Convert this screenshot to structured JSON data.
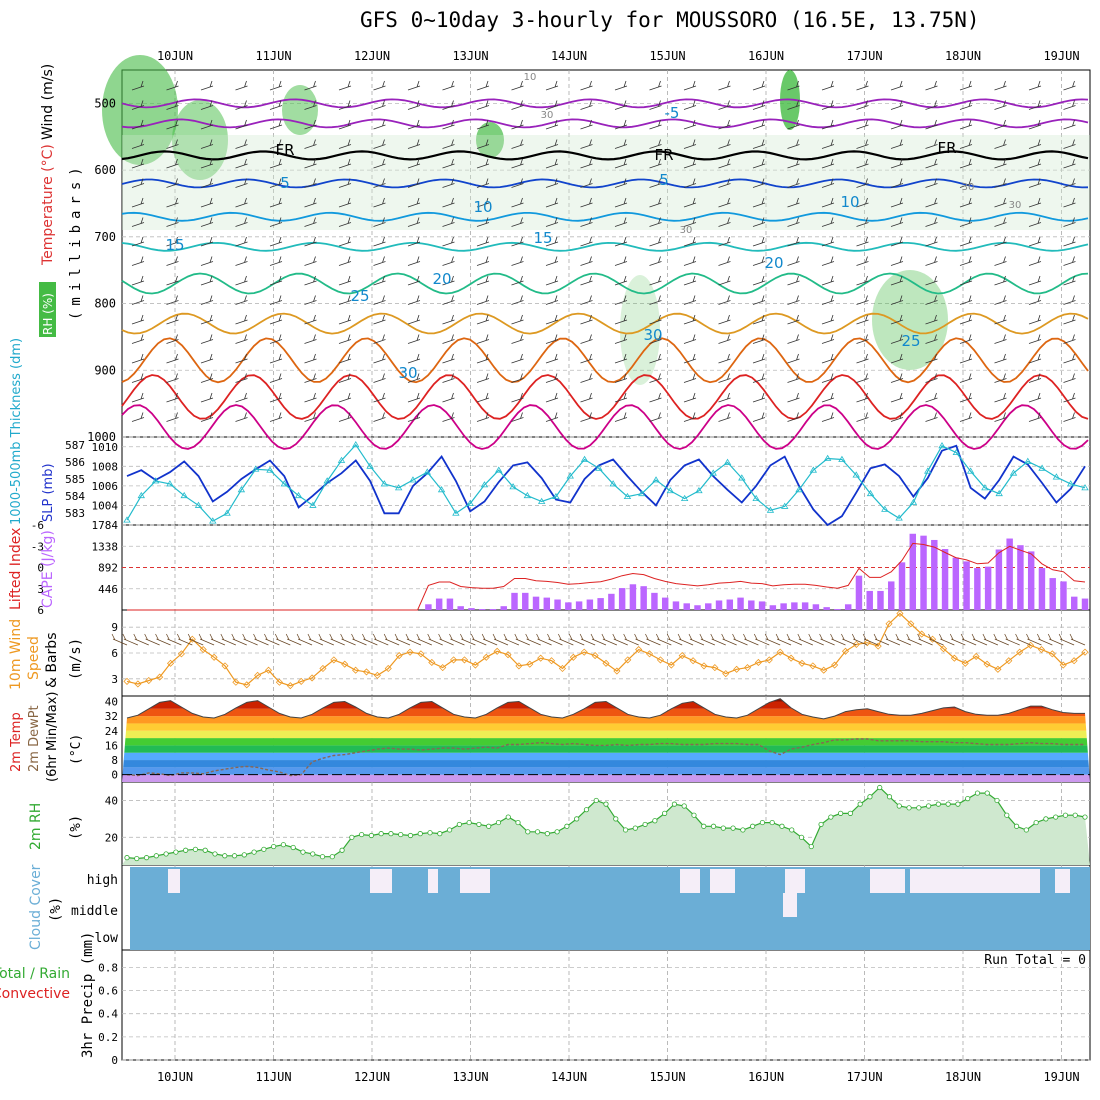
{
  "title": "GFS 0~10day 3-hourly for MOUSSORO (16.5E, 13.75N)",
  "dates": [
    "10JUN",
    "11JUN",
    "12JUN",
    "13JUN",
    "14JUN",
    "15JUN",
    "16JUN",
    "17JUN",
    "18JUN",
    "19JUN"
  ],
  "colors": {
    "rh_green": "#44bb44",
    "cape_purple": "#bb66ff",
    "li_red": "#dd2222",
    "slp_blue": "#1133cc",
    "thick_cyan": "#22bbcc",
    "wind_orange": "#ee9922",
    "rh2m_green": "#33aa33",
    "cloud_blue": "#6baed6",
    "grid": "#aaaaaa"
  },
  "chart_data": [
    {
      "panel": "upper_air",
      "type": "contour",
      "ylabel_parts": [
        "RH (%)",
        "Temperature (°C)",
        "Wind (m/s)"
      ],
      "yaxis_label": "(millibars)",
      "yticks": [
        500,
        600,
        700,
        800,
        900,
        1000
      ],
      "ylim": [
        450,
        1000
      ],
      "contour_labels": [
        {
          "text": "10",
          "kind": "rh"
        },
        {
          "text": "30",
          "kind": "rh"
        },
        {
          "text": "30",
          "kind": "rh"
        },
        {
          "text": "30",
          "kind": "rh"
        },
        {
          "text": "30",
          "kind": "rh"
        },
        {
          "text": "-5",
          "kind": "temp"
        },
        {
          "text": "FR",
          "kind": "freeze"
        },
        {
          "text": "FR",
          "kind": "freeze"
        },
        {
          "text": "FR",
          "kind": "freeze"
        },
        {
          "text": "5",
          "kind": "temp"
        },
        {
          "text": "5",
          "kind": "temp"
        },
        {
          "text": "10",
          "kind": "temp"
        },
        {
          "text": "10",
          "kind": "temp"
        },
        {
          "text": "15",
          "kind": "temp"
        },
        {
          "text": "15",
          "kind": "temp"
        },
        {
          "text": "20",
          "kind": "temp"
        },
        {
          "text": "20",
          "kind": "temp"
        },
        {
          "text": "25",
          "kind": "temp"
        },
        {
          "text": "25",
          "kind": "temp"
        },
        {
          "text": "30",
          "kind": "temp"
        },
        {
          "text": "30",
          "kind": "temp"
        }
      ],
      "isotherms": [
        {
          "temp": -5,
          "color": "#9922bb",
          "p": 500
        },
        {
          "temp": -2,
          "color": "#9922bb",
          "p": 530
        },
        {
          "temp": 0,
          "color": "#000000",
          "p": 578
        },
        {
          "temp": 5,
          "color": "#1144cc",
          "p": 620
        },
        {
          "temp": 10,
          "color": "#1199dd",
          "p": 670
        },
        {
          "temp": 15,
          "color": "#22bbbb",
          "p": 715
        },
        {
          "temp": 20,
          "color": "#22bb88",
          "p": 770
        },
        {
          "temp": 25,
          "color": "#dd9922",
          "p": 830
        },
        {
          "temp": 30,
          "color": "#dd6611",
          "p": 885
        },
        {
          "temp": 35,
          "color": "#dd2222",
          "p": 940
        },
        {
          "temp": 40,
          "color": "#cc0088",
          "p": 985
        }
      ]
    },
    {
      "panel": "slp_thickness",
      "type": "line",
      "ylabel_left": "1000-500mb Thickness (dm)",
      "ylabel_right": "SLP (mb)",
      "yticks_left": [
        583,
        584,
        585,
        586,
        587
      ],
      "yticks_right": [
        1004,
        1006,
        1008,
        1010
      ],
      "ylim_right": [
        1002,
        1011
      ],
      "series": [
        {
          "name": "SLP",
          "values": [
            1007,
            1007.6,
            1006.6,
            1007.4,
            1008.5,
            1007,
            1004.4,
            1005.4,
            1006.7,
            1007.7,
            1008.6,
            1007,
            1003.8,
            1005,
            1006.3,
            1007.3,
            1008.6,
            1006.5,
            1003.2,
            1003.2,
            1006,
            1007.3,
            1009,
            1006.5,
            1003.4,
            1004.4,
            1006.4,
            1008.1,
            1008.4,
            1006.8,
            1004.6,
            1004.3,
            1006.7,
            1008.1,
            1008.7,
            1007,
            1005.4,
            1004,
            1006.6,
            1008.1,
            1008.7,
            1007,
            1005.6,
            1004.3,
            1006,
            1008.1,
            1009,
            1006,
            1003.6,
            1002,
            1002.9,
            1005.3,
            1007.8,
            1008.2,
            1007,
            1004.9,
            1006.8,
            1009.6,
            1010.1,
            1005.8,
            1004.7,
            1006.6,
            1009,
            1008.2,
            1006.3,
            1004.3,
            1005.7,
            1008
          ]
        },
        {
          "name": "Thickness",
          "values": [
            1002.5,
            1005,
            1006.5,
            1006.2,
            1005,
            1004,
            1002.4,
            1003.2,
            1005.6,
            1007.7,
            1007.6,
            1006.2,
            1005,
            1004,
            1006.5,
            1008.6,
            1010.2,
            1008,
            1006.2,
            1005.8,
            1006.6,
            1007.4,
            1005.6,
            1003.2,
            1004.2,
            1006.1,
            1007.6,
            1005.9,
            1005,
            1004.4,
            1004.9,
            1007,
            1008.7,
            1007.8,
            1006.2,
            1004.9,
            1005.2,
            1006.6,
            1005.5,
            1004.7,
            1005.5,
            1007.3,
            1008.4,
            1006.8,
            1004.7,
            1003.5,
            1003.9,
            1005.6,
            1007.6,
            1008.8,
            1008.7,
            1007.1,
            1005.2,
            1003.6,
            1002.7,
            1004.3,
            1007.5,
            1010.1,
            1009.4,
            1007.5,
            1005.8,
            1005.2,
            1007.3,
            1008.5,
            1007.8,
            1006.9,
            1006.2,
            1005.8
          ]
        }
      ]
    },
    {
      "panel": "cape_li",
      "type": "bar",
      "ylabel_left": "Lifted Index",
      "ylabel_right": "CAPE (J/kg)",
      "yticks_left": [
        -6,
        -3,
        0,
        3,
        6
      ],
      "yticks_right": [
        446,
        892,
        1338,
        1784
      ],
      "ylim_right": [
        0,
        1784
      ],
      "series": [
        {
          "name": "CAPE",
          "values": [
            0,
            0,
            0,
            0,
            0,
            0,
            0,
            0,
            0,
            0,
            0,
            0,
            0,
            0,
            0,
            0,
            0,
            0,
            0,
            0,
            0,
            0,
            0,
            0,
            0,
            0,
            0,
            0,
            0,
            0,
            0,
            0,
            0,
            0,
            0,
            0,
            0,
            0,
            0,
            0,
            0,
            0,
            0,
            0,
            0,
            0,
            0,
            0,
            0,
            0,
            0,
            0,
            0,
            0,
            0,
            0,
            0,
            0,
            0,
            0,
            0,
            0,
            0,
            0,
            0,
            0,
            0,
            0,
            0,
            0,
            0,
            0,
            0,
            0,
            0,
            0,
            0,
            0,
            0,
            0,
            0
          ]
        },
        {
          "name": "Lifted Index",
          "values": [
            6,
            6,
            6,
            6,
            6,
            6,
            6,
            6,
            6,
            6,
            6,
            6,
            6,
            6,
            6,
            6,
            6,
            6,
            6,
            6,
            6,
            6,
            6,
            6,
            6,
            6,
            6,
            6,
            6,
            6,
            6,
            6,
            6,
            6,
            6,
            6,
            6,
            6,
            6,
            6,
            6,
            6,
            6,
            6,
            6,
            6,
            6,
            6,
            6,
            6,
            6,
            6,
            6,
            6,
            6,
            6,
            6,
            6,
            6,
            6,
            6,
            6,
            6,
            6,
            6,
            6,
            6,
            6,
            6,
            6,
            6,
            6,
            6,
            6,
            6,
            6,
            6,
            6,
            6,
            6,
            6
          ]
        }
      ],
      "cape": [
        0,
        0,
        0,
        0,
        0,
        0,
        0,
        0,
        0,
        0,
        0,
        0,
        0,
        0,
        0,
        0,
        0,
        0,
        0,
        0,
        0,
        0,
        0,
        0,
        0,
        0,
        0,
        0,
        120,
        240,
        240,
        80,
        40,
        20,
        20,
        80,
        360,
        360,
        280,
        260,
        220,
        160,
        180,
        220,
        250,
        340,
        460,
        540,
        500,
        360,
        260,
        180,
        140,
        100,
        140,
        200,
        220,
        260,
        200,
        180,
        100,
        140,
        160,
        160,
        120,
        60,
        20,
        120,
        720,
        400,
        400,
        600,
        1000,
        1600,
        1560,
        1470,
        1280,
        1100,
        1020,
        880,
        910,
        1270,
        1500,
        1360,
        1230,
        880,
        670,
        600,
        280,
        240
      ]
    },
    {
      "panel": "wind10m",
      "type": "line",
      "ylabel": "10m Wind Speed & Barbs",
      "yunit": "(m/s)",
      "yticks": [
        3,
        6,
        9
      ],
      "ylim": [
        1,
        11
      ],
      "series": [
        {
          "name": "Wind speed",
          "values": [
            2.7,
            2.4,
            2.8,
            3.2,
            4.8,
            5.9,
            7.6,
            6.4,
            5.5,
            4.5,
            2.6,
            2.3,
            3.4,
            4,
            2.6,
            2.2,
            2.7,
            3.1,
            4.2,
            5.2,
            4.7,
            4,
            3.8,
            3.4,
            4.2,
            5.7,
            6.1,
            5.9,
            4.9,
            4.3,
            5.2,
            5.2,
            4.6,
            5.5,
            6.2,
            5.8,
            4.5,
            4.7,
            5.4,
            5.1,
            4.2,
            5.5,
            6.1,
            5.7,
            4.8,
            3.9,
            5.2,
            6.4,
            5.9,
            5.2,
            4.6,
            5.7,
            5.1,
            4.5,
            4.3,
            3.6,
            4.1,
            4.3,
            4.9,
            5.2,
            6.1,
            5.4,
            4.8,
            4.5,
            4,
            4.6,
            6.2,
            7,
            7.2,
            6.8,
            9.4,
            10.6,
            9.4,
            8.2,
            7.6,
            6.5,
            5.4,
            4.8,
            5.6,
            4.7,
            4.1,
            5.1,
            6.1,
            6.9,
            6.4,
            5.9,
            4.6,
            5.1,
            6.1
          ]
        }
      ]
    },
    {
      "panel": "temp2m",
      "type": "area",
      "ylabel": "2m Temp / 2m DewPt (6hr Min/Max)",
      "yunit": "(°C)",
      "yticks": [
        0,
        8,
        16,
        24,
        32,
        40
      ],
      "ylim": [
        -4,
        43
      ],
      "series": [
        {
          "name": "Temperature",
          "values": [
            31,
            32.5,
            36,
            39.5,
            40.5,
            37,
            33.5,
            31.5,
            31,
            33,
            36.5,
            39.5,
            40.5,
            37,
            33.5,
            31.5,
            31,
            33,
            36.5,
            39.5,
            40,
            37,
            33.5,
            31.5,
            31,
            33,
            36.5,
            39.5,
            40,
            36.5,
            33,
            31.5,
            31,
            33,
            36.5,
            39.5,
            40,
            36.5,
            33,
            31.5,
            31,
            33,
            36,
            39.5,
            40,
            36.5,
            33,
            31.5,
            31,
            32.5,
            36,
            39,
            40,
            36.5,
            33,
            31.5,
            31,
            32.5,
            36,
            39.5,
            41.5,
            36.5,
            33,
            31.5,
            30.5,
            32,
            34.5,
            35.5,
            36,
            34.5,
            33,
            32.5,
            32.5,
            33.5,
            35,
            36.5,
            37,
            34.5,
            33,
            32.5,
            32.5,
            33.5,
            35.5,
            37.5,
            37.5,
            35.5,
            34,
            33.5,
            33.5
          ]
        },
        {
          "name": "Dew Point",
          "values": [
            0,
            -0.5,
            1,
            0.5,
            -0.5,
            1,
            1,
            0.5,
            2,
            3,
            4,
            4.5,
            4,
            2.5,
            1.5,
            -0.5,
            0,
            7,
            9,
            10.5,
            11,
            12,
            13,
            14,
            14.5,
            14,
            14,
            13.5,
            14,
            14.5,
            14.5,
            14,
            14.5,
            15,
            14.5,
            16.5,
            16.5,
            17,
            17.5,
            17,
            16.5,
            17,
            16.5,
            16,
            16,
            16.5,
            16,
            16.5,
            16.5,
            17,
            17,
            16.5,
            16.5,
            16.5,
            17,
            17,
            17,
            16.5,
            16.5,
            13,
            11,
            14,
            15,
            16.5,
            17.5,
            19,
            19,
            19.5,
            19.5,
            18.5,
            18.5,
            18.5,
            18.5,
            18,
            18,
            18,
            17.5,
            17.5,
            17,
            16.5,
            16.5,
            16.5,
            17,
            17.5,
            17,
            17,
            16.5,
            16.5,
            16.5
          ]
        }
      ]
    },
    {
      "panel": "rh2m",
      "type": "line",
      "ylabel": "2m RH",
      "yunit": "(%)",
      "yticks": [
        20,
        40
      ],
      "ylim": [
        5,
        50
      ],
      "series": [
        {
          "name": "RH 2m",
          "values": [
            9,
            8.5,
            9,
            10,
            11,
            12,
            13,
            13.5,
            13,
            11,
            10,
            10,
            10.5,
            12,
            13.5,
            15,
            16,
            14.5,
            12,
            11,
            9.5,
            9.5,
            13,
            20,
            21.5,
            21,
            22,
            22,
            21.5,
            21,
            22,
            22.5,
            22,
            24,
            27,
            28,
            27,
            26,
            28,
            31,
            28,
            23,
            23,
            22,
            23,
            26,
            30,
            35,
            40,
            38,
            30,
            24,
            25,
            27,
            29,
            33,
            38,
            37,
            32,
            26,
            26,
            25,
            25,
            24,
            26,
            28,
            28,
            26,
            24,
            20,
            15,
            27,
            31,
            33,
            33,
            38,
            42,
            47,
            42,
            37,
            36,
            36,
            37,
            38,
            38,
            38,
            41,
            44,
            44,
            40,
            32,
            26,
            24,
            28,
            30,
            31,
            32,
            32,
            31
          ]
        }
      ]
    },
    {
      "panel": "cloud_cover",
      "type": "heatmap",
      "ylabel": "Cloud Cover",
      "yunit": "(%)",
      "ylevels": [
        "high",
        "middle",
        "low"
      ],
      "high": [
        0,
        0,
        0,
        0,
        0,
        0,
        0,
        0,
        0,
        0,
        0,
        0,
        0,
        0,
        0,
        0,
        0,
        0,
        0,
        0,
        0,
        0,
        0,
        0,
        0,
        0,
        0,
        0,
        0,
        0,
        0,
        0,
        0,
        0,
        0,
        0,
        0,
        0,
        0,
        0,
        0,
        0,
        0,
        0,
        0,
        0,
        0,
        0,
        0,
        0,
        0,
        0,
        0,
        0,
        0,
        0,
        0,
        0,
        0,
        0,
        0,
        0,
        0,
        0,
        0,
        0,
        0,
        0,
        0,
        0,
        0,
        0,
        0,
        0,
        0,
        0,
        0,
        0,
        0,
        0,
        0,
        0,
        0,
        0,
        0,
        0,
        0,
        0,
        0,
        0,
        0,
        0,
        0,
        0,
        0
      ]
    },
    {
      "panel": "precip",
      "type": "bar",
      "ylabel": "Total / Rain Convective",
      "ylabel_parts": [
        "Total / Rain",
        "Convective"
      ],
      "yunit": "3hr Precip (mm)",
      "yticks": [
        0,
        0.2,
        0.4,
        0.6,
        0.8
      ],
      "ylim": [
        0,
        0.95
      ],
      "run_total": "Run Total = 0",
      "values": []
    }
  ]
}
